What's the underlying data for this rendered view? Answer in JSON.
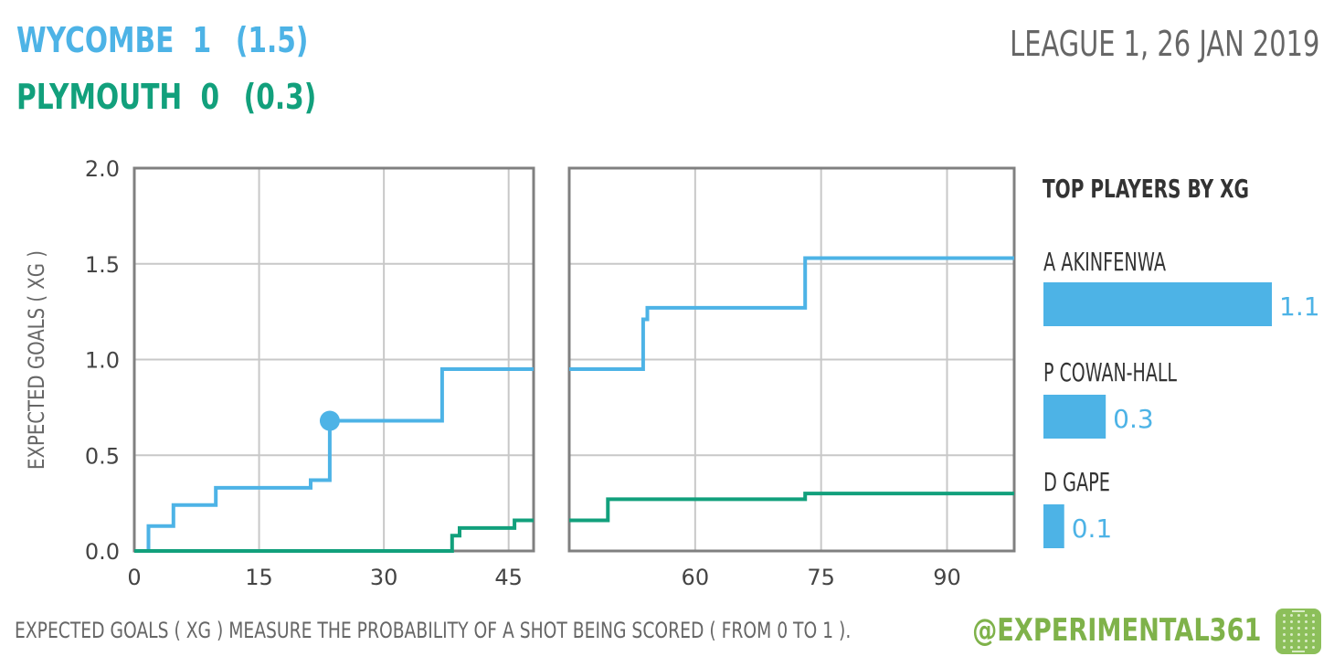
{
  "header": {
    "team1": {
      "name": "WYCOMBE",
      "score": "1",
      "xg": "(1.5)",
      "color": "#4db3e6"
    },
    "team2": {
      "name": "PLYMOUTH",
      "score": "0",
      "xg": "(0.3)",
      "color": "#12a07c"
    },
    "competition": "LEAGUE 1, 26 JAN 2019"
  },
  "footer": {
    "note": "EXPECTED GOALS ( XG ) MEASURE THE PROBABILITY OF A SHOT BEING SCORED ( FROM 0 TO 1 ).",
    "handle": "@EXPERIMENTAL361"
  },
  "chart_data": [
    {
      "type": "line",
      "panel": "first-half",
      "ylabel": "EXPECTED GOALS ( XG )",
      "xlim": [
        0,
        48
      ],
      "ylim": [
        0,
        2.0
      ],
      "xticks": [
        0,
        15,
        30,
        45
      ],
      "yticks": [
        "0.0",
        "0.5",
        "1.0",
        "1.5",
        "2.0"
      ],
      "grid": true,
      "series": [
        {
          "name": "WYCOMBE",
          "color": "#4db3e6",
          "goal_marker": [
            23.5,
            0.68
          ],
          "x": [
            0,
            1.7,
            1.7,
            4.7,
            4.7,
            9.8,
            9.8,
            21.2,
            21.2,
            23.5,
            23.5,
            37,
            37,
            48
          ],
          "y": [
            0,
            0,
            0.13,
            0.13,
            0.24,
            0.24,
            0.33,
            0.33,
            0.37,
            0.37,
            0.68,
            0.68,
            0.95,
            0.95
          ]
        },
        {
          "name": "PLYMOUTH",
          "color": "#12a07c",
          "x": [
            0,
            38.2,
            38.2,
            39.1,
            39.1,
            45.7,
            45.7,
            48
          ],
          "y": [
            0,
            0,
            0.08,
            0.08,
            0.12,
            0.12,
            0.16,
            0.16
          ]
        }
      ]
    },
    {
      "type": "line",
      "panel": "second-half",
      "xlim": [
        45,
        98
      ],
      "ylim": [
        0,
        2.0
      ],
      "xticks": [
        60,
        75,
        90
      ],
      "grid": true,
      "series": [
        {
          "name": "WYCOMBE",
          "color": "#4db3e6",
          "x": [
            45,
            53.8,
            53.8,
            54.3,
            54.3,
            73.1,
            73.1,
            98
          ],
          "y": [
            0.95,
            0.95,
            1.21,
            1.21,
            1.27,
            1.27,
            1.53,
            1.53
          ]
        },
        {
          "name": "PLYMOUTH",
          "color": "#12a07c",
          "x": [
            45,
            49.6,
            49.6,
            73.1,
            73.1,
            98
          ],
          "y": [
            0.16,
            0.16,
            0.27,
            0.27,
            0.3,
            0.3
          ]
        }
      ]
    },
    {
      "type": "bar",
      "title": "TOP PLAYERS BY XG",
      "orientation": "horizontal",
      "color": "#4db3e6",
      "categories": [
        "A AKINFENWA",
        "P COWAN-HALL",
        "D GAPE"
      ],
      "values": [
        1.1,
        0.3,
        0.1
      ],
      "labels": [
        "1.1",
        "0.3",
        "0.1"
      ],
      "xlim": [
        0,
        1.1
      ]
    }
  ]
}
